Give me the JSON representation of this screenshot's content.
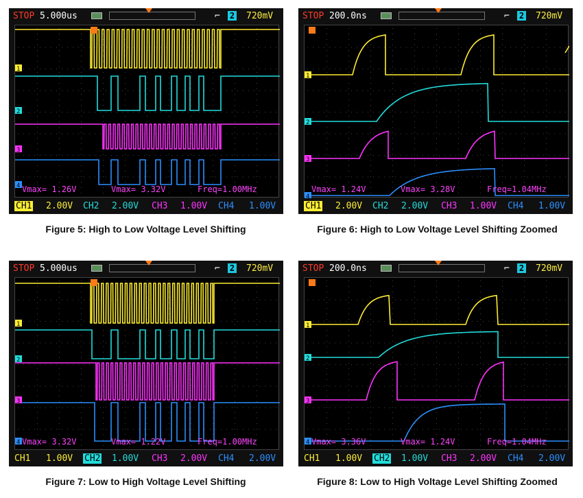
{
  "figures": [
    {
      "caption": "Figure 5: High to Low Voltage Level Shifting",
      "status": "STOP",
      "timebase": "5.000us",
      "trigger_level": "720mV",
      "trigger_channel": "2",
      "measurements": [
        "Vmax= 1.26V",
        "Vmax= 3.32V",
        "Freq=1.00MHz"
      ],
      "channels": [
        {
          "label": "CH1",
          "scale": "2.00V",
          "active": true
        },
        {
          "label": "CH2",
          "scale": "2.00V",
          "active": false
        },
        {
          "label": "CH3",
          "scale": "1.00V",
          "active": false
        },
        {
          "label": "CH4",
          "scale": "1.00V",
          "active": false
        }
      ]
    },
    {
      "caption": "Figure 6: High to Low Voltage Level Shifting Zoomed",
      "status": "STOP",
      "timebase": "200.0ns",
      "trigger_level": "720mV",
      "trigger_channel": "2",
      "measurements": [
        "Vmax= 1.24V",
        "Vmax= 3.28V",
        "Freq=1.04MHz"
      ],
      "channels": [
        {
          "label": "CH1",
          "scale": "2.00V",
          "active": true
        },
        {
          "label": "CH2",
          "scale": "2.00V",
          "active": false
        },
        {
          "label": "CH3",
          "scale": "1.00V",
          "active": false
        },
        {
          "label": "CH4",
          "scale": "1.00V",
          "active": false
        }
      ]
    },
    {
      "caption": "Figure 7: Low to High Voltage Level Shifting",
      "status": "STOP",
      "timebase": "5.000us",
      "trigger_level": "720mV",
      "trigger_channel": "2",
      "measurements": [
        "Vmax= 3.32V",
        "Vmax= 1.22V",
        "Freq=1.00MHz"
      ],
      "channels": [
        {
          "label": "CH1",
          "scale": "1.00V",
          "active": false
        },
        {
          "label": "CH2",
          "scale": "1.00V",
          "active": true
        },
        {
          "label": "CH3",
          "scale": "2.00V",
          "active": false
        },
        {
          "label": "CH4",
          "scale": "2.00V",
          "active": false
        }
      ]
    },
    {
      "caption": "Figure 8: Low to High Voltage Level Shifting Zoomed",
      "status": "STOP",
      "timebase": "200.0ns",
      "trigger_level": "720mV",
      "trigger_channel": "2",
      "measurements": [
        "Vmax= 3.36V",
        "Vmax= 1.24V",
        "Freq=1.04MHz"
      ],
      "channels": [
        {
          "label": "CH1",
          "scale": "1.00V",
          "active": false
        },
        {
          "label": "CH2",
          "scale": "1.00V",
          "active": true
        },
        {
          "label": "CH3",
          "scale": "2.00V",
          "active": false
        },
        {
          "label": "CH4",
          "scale": "2.00V",
          "active": false
        }
      ]
    }
  ],
  "colors": {
    "ch1": "#ffee33",
    "ch2": "#22dddd",
    "ch3": "#ff33ff",
    "ch4": "#2b8fff",
    "stop": "#ff3a2a",
    "trigger": "#ff7a18"
  }
}
